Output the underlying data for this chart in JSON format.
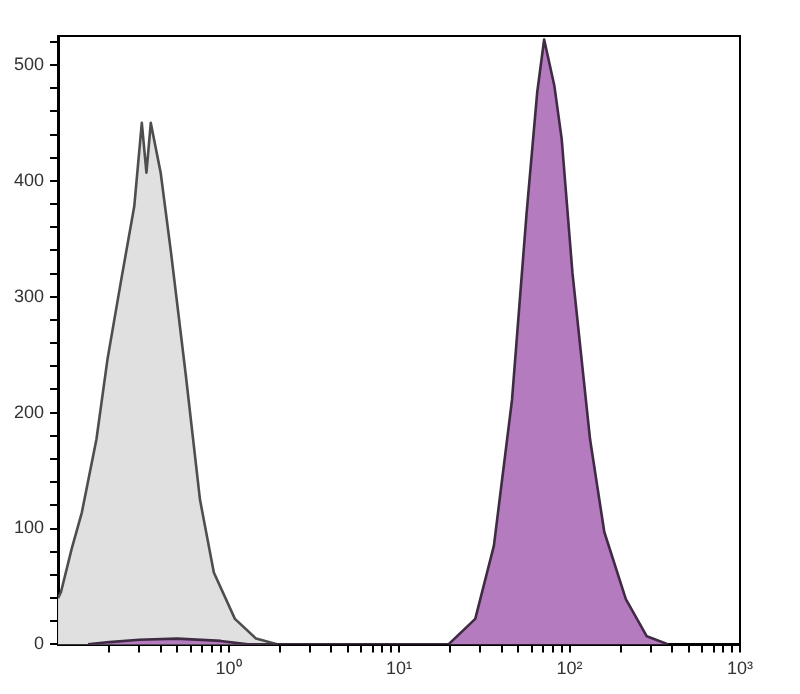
{
  "chart_data": {
    "type": "area",
    "log": "x",
    "grid": false,
    "marker": "none",
    "xlim": [
      0.1,
      1000
    ],
    "ylim": [
      0,
      525
    ],
    "xticks": [
      {
        "value": 0.2,
        "label": null
      },
      {
        "value": 0.3,
        "label": null
      },
      {
        "value": 0.4,
        "label": null
      },
      {
        "value": 0.5,
        "label": null
      },
      {
        "value": 0.6,
        "label": null
      },
      {
        "value": 0.7,
        "label": null
      },
      {
        "value": 0.8,
        "label": null
      },
      {
        "value": 0.9,
        "label": null
      },
      {
        "value": 1,
        "label": "10⁰"
      },
      {
        "value": 2,
        "label": null
      },
      {
        "value": 3,
        "label": null
      },
      {
        "value": 4,
        "label": null
      },
      {
        "value": 5,
        "label": null
      },
      {
        "value": 6,
        "label": null
      },
      {
        "value": 7,
        "label": null
      },
      {
        "value": 8,
        "label": null
      },
      {
        "value": 9,
        "label": null
      },
      {
        "value": 10,
        "label": "10¹"
      },
      {
        "value": 20,
        "label": null
      },
      {
        "value": 30,
        "label": null
      },
      {
        "value": 40,
        "label": null
      },
      {
        "value": 50,
        "label": null
      },
      {
        "value": 60,
        "label": null
      },
      {
        "value": 70,
        "label": null
      },
      {
        "value": 80,
        "label": null
      },
      {
        "value": 90,
        "label": null
      },
      {
        "value": 100,
        "label": "10²"
      },
      {
        "value": 200,
        "label": null
      },
      {
        "value": 300,
        "label": null
      },
      {
        "value": 400,
        "label": null
      },
      {
        "value": 500,
        "label": null
      },
      {
        "value": 600,
        "label": null
      },
      {
        "value": 700,
        "label": null
      },
      {
        "value": 800,
        "label": null
      },
      {
        "value": 900,
        "label": null
      },
      {
        "value": 1000,
        "label": "10³"
      }
    ],
    "yticks": [
      0,
      {
        "value": 20,
        "label": null
      },
      {
        "value": 40,
        "label": null
      },
      {
        "value": 60,
        "label": null
      },
      {
        "value": 80,
        "label": null
      },
      100,
      {
        "value": 120,
        "label": null
      },
      {
        "value": 140,
        "label": null
      },
      {
        "value": 160,
        "label": null
      },
      {
        "value": 180,
        "label": null
      },
      200,
      {
        "value": 220,
        "label": null
      },
      {
        "value": 240,
        "label": null
      },
      {
        "value": 260,
        "label": null
      },
      {
        "value": 280,
        "label": null
      },
      300,
      {
        "value": 320,
        "label": null
      },
      {
        "value": 340,
        "label": null
      },
      {
        "value": 360,
        "label": null
      },
      {
        "value": 380,
        "label": null
      },
      400,
      {
        "value": 420,
        "label": null
      },
      {
        "value": 440,
        "label": null
      },
      {
        "value": 460,
        "label": null
      },
      {
        "value": 480,
        "label": null
      },
      500,
      {
        "value": 520,
        "label": null
      }
    ],
    "series": [
      {
        "color": "#b57bbf",
        "x": [
          0.15,
          0.2,
          0.3,
          0.5,
          0.9,
          1.3,
          19.5,
          28,
          36,
          46,
          56,
          64.6,
          71,
          81.5,
          90,
          104,
          132,
          160,
          214,
          284,
          380
        ],
        "values": [
          0,
          2,
          4,
          5,
          3,
          0,
          0,
          22,
          85,
          211,
          372,
          476,
          522,
          482,
          436,
          321,
          177,
          97,
          39,
          7,
          0
        ]
      },
      {
        "color": "#e0e0e0",
        "x": [
          0.1,
          0.104,
          0.12,
          0.138,
          0.168,
          0.195,
          0.235,
          0.28,
          0.31,
          0.33,
          0.35,
          0.4,
          0.46,
          0.56,
          0.68,
          0.82,
          1.09,
          1.45,
          1.95
        ],
        "values": [
          40,
          45,
          82,
          114,
          177,
          246,
          315,
          378,
          450,
          407,
          450,
          407,
          338,
          234,
          125,
          62,
          22,
          5,
          0
        ]
      }
    ]
  }
}
